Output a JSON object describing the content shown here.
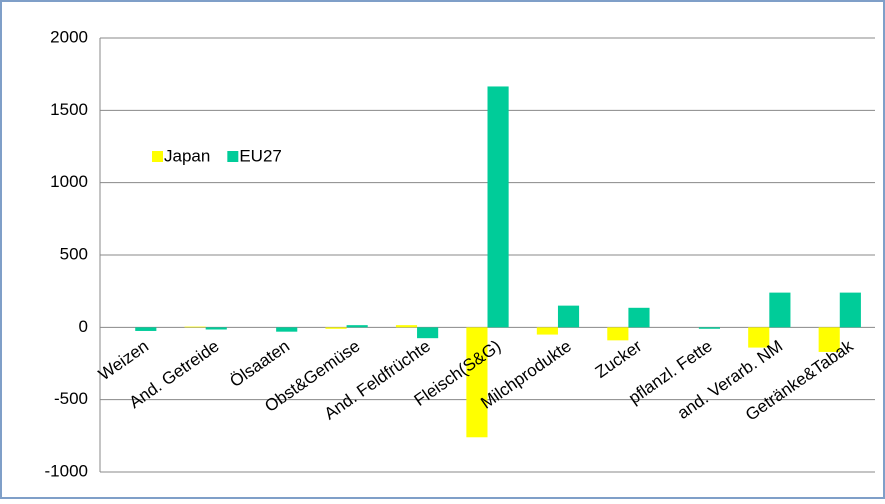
{
  "chart_data": {
    "type": "bar",
    "categories": [
      "Weizen",
      "And. Getreide",
      "Ölsaaten",
      "Obst&Gemüse",
      "And. Feldfrüchte",
      "Fleisch(S&G)",
      "Milchprodukte",
      "Zucker",
      "pflanzl. Fette",
      "and. Verarb. NM",
      "Getränke&Tabak"
    ],
    "series": [
      {
        "name": "Japan",
        "color": "#ffff00",
        "values": [
          0,
          5,
          0,
          -10,
          15,
          -760,
          -50,
          -90,
          0,
          -140,
          -170
        ]
      },
      {
        "name": "EU27",
        "color": "#00cc99",
        "values": [
          -25,
          -15,
          -30,
          15,
          -75,
          1665,
          150,
          135,
          -10,
          240,
          240
        ]
      }
    ],
    "ylim": [
      -1000,
      2000
    ],
    "yticks": [
      -1000,
      -500,
      0,
      500,
      1000,
      1500,
      2000
    ],
    "grid": true
  }
}
